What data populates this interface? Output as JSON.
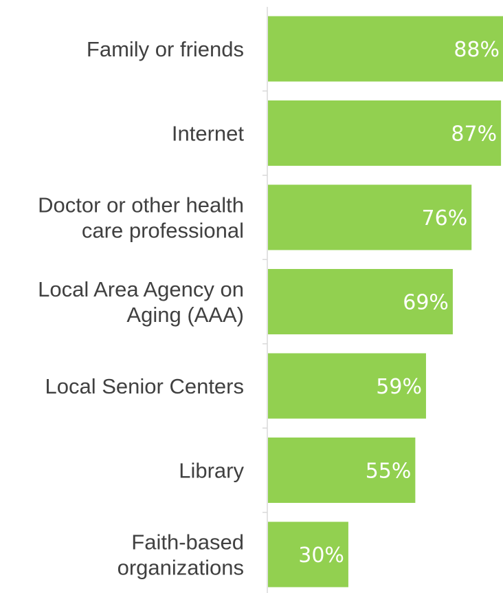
{
  "chart_data": {
    "type": "bar",
    "orientation": "horizontal",
    "categories": [
      [
        "Family or friends"
      ],
      [
        "Internet"
      ],
      [
        "Doctor or other health",
        "care professional"
      ],
      [
        "Local Area Agency on",
        "Aging (AAA)"
      ],
      [
        "Local Senior Centers"
      ],
      [
        "Library"
      ],
      [
        "Faith-based",
        "organizations"
      ]
    ],
    "values": [
      88,
      87,
      76,
      69,
      59,
      55,
      30
    ],
    "value_labels": [
      "88%",
      "87%",
      "76%",
      "69%",
      "59%",
      "55%",
      "30%"
    ],
    "bar_color": "#92d050",
    "axis_color": "#d9d9d9",
    "label_color": "#404040",
    "value_label_color": "#ffffff",
    "title": "",
    "xlabel": "",
    "ylabel": "",
    "xlim": [
      0,
      88
    ],
    "grid": false,
    "legend": "none"
  }
}
